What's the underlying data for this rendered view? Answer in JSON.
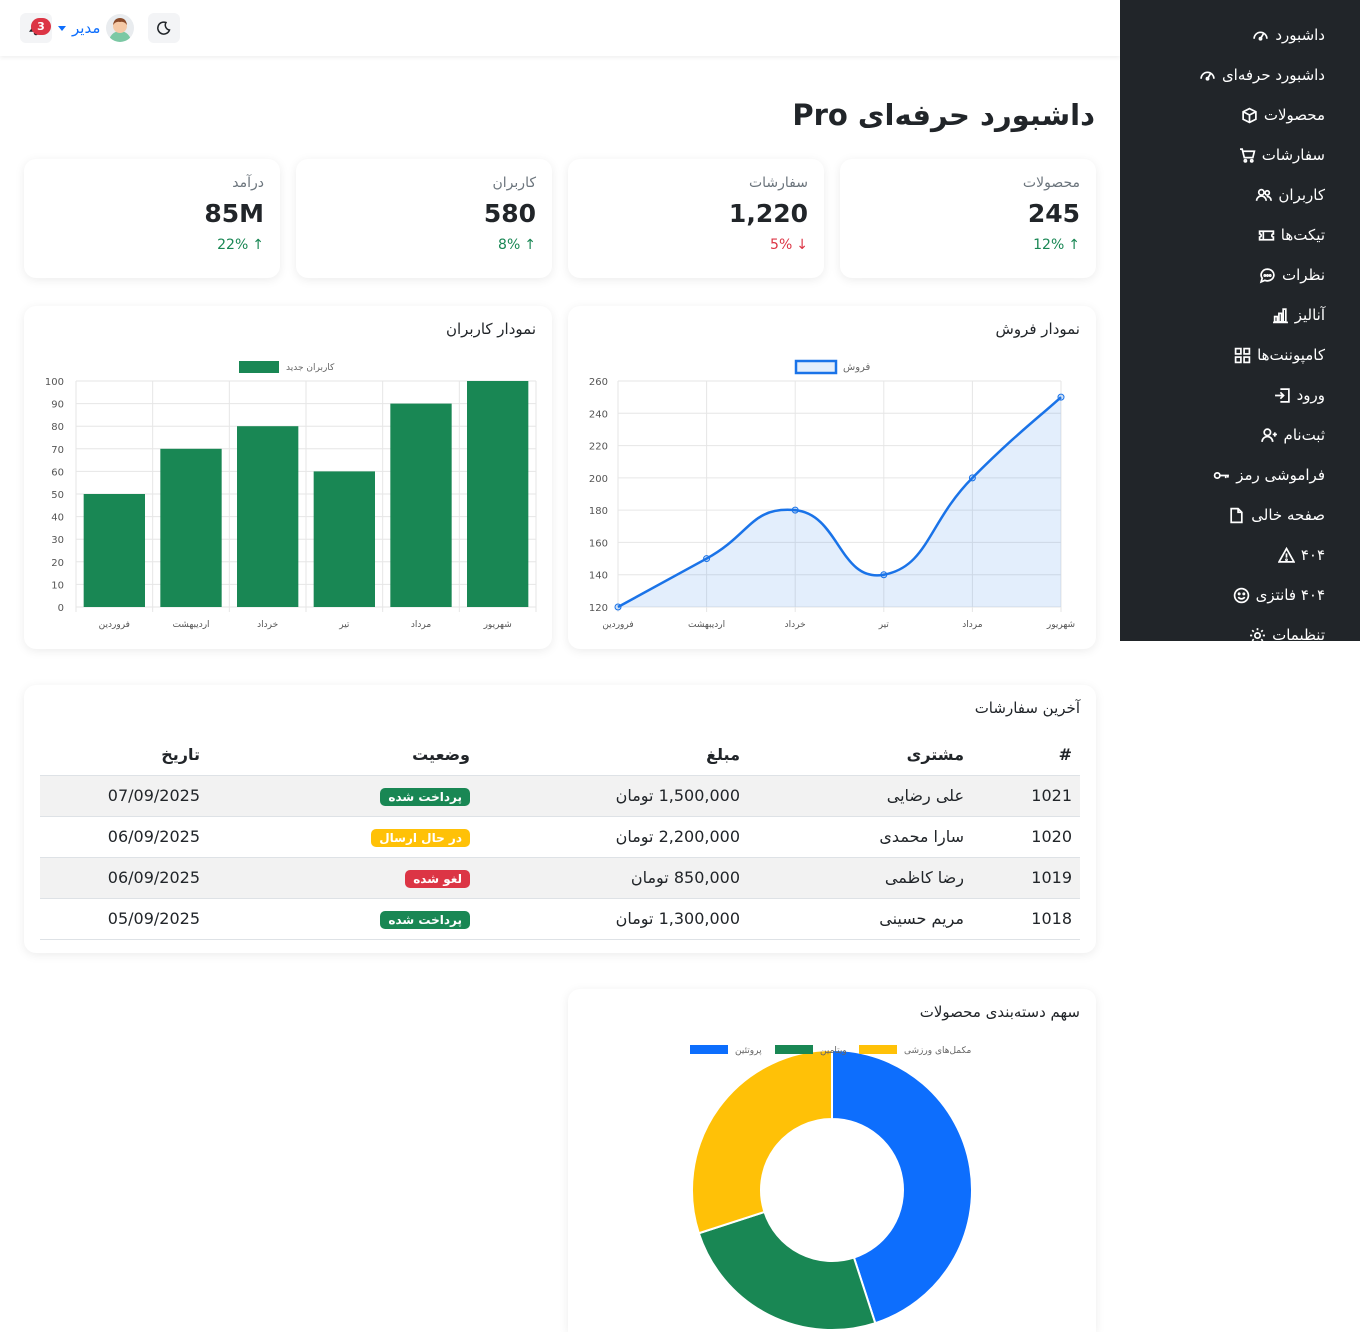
{
  "topbar": {
    "notification_count": "3",
    "user_name": "مدیر"
  },
  "sidebar": {
    "items": [
      {
        "label": "داشبورد",
        "icon": "speedometer-icon"
      },
      {
        "label": "داشبورد حرفه‌ای",
        "icon": "speedometer-icon"
      },
      {
        "label": "محصولات",
        "icon": "box-icon"
      },
      {
        "label": "سفارشات",
        "icon": "cart-icon"
      },
      {
        "label": "کاربران",
        "icon": "users-icon"
      },
      {
        "label": "تیکت‌ها",
        "icon": "ticket-icon"
      },
      {
        "label": "نظرات",
        "icon": "chat-icon"
      },
      {
        "label": "آنالیز",
        "icon": "bar-chart-icon"
      },
      {
        "label": "کامپوننت‌ها",
        "icon": "grid-icon"
      },
      {
        "label": "ورود",
        "icon": "login-icon"
      },
      {
        "label": "ثبت‌نام",
        "icon": "user-plus-icon"
      },
      {
        "label": "فراموشی رمز",
        "icon": "key-icon"
      },
      {
        "label": "صفحه خالی",
        "icon": "file-icon"
      },
      {
        "label": "۴۰۴",
        "icon": "warning-icon"
      },
      {
        "label": "۴۰۴ فانتزی",
        "icon": "smile-icon"
      },
      {
        "label": "تنظیمات",
        "icon": "gear-icon"
      }
    ]
  },
  "page": {
    "title": "داشبورد حرفه‌ای Pro"
  },
  "stats": [
    {
      "label": "محصولات",
      "value": "245",
      "change": "12%",
      "direction": "up"
    },
    {
      "label": "سفارشات",
      "value": "1,220",
      "change": "5%",
      "direction": "down"
    },
    {
      "label": "کاربران",
      "value": "580",
      "change": "8%",
      "direction": "up"
    },
    {
      "label": "درآمد",
      "value": "85M",
      "change": "22%",
      "direction": "up"
    }
  ],
  "chart_data": [
    {
      "type": "line",
      "card_title": "نمودار فروش",
      "categories": [
        "فروردین",
        "اردیبهشت",
        "خرداد",
        "تیر",
        "مرداد",
        "شهریور"
      ],
      "series": [
        {
          "name": "فروش",
          "values": [
            120,
            150,
            180,
            140,
            200,
            250
          ],
          "color": "#1a73e8"
        }
      ],
      "ylim": [
        120,
        260
      ],
      "yticks": [
        "120",
        "140",
        "160",
        "180",
        "200",
        "220",
        "240",
        "260"
      ],
      "grid": true,
      "legend": "top"
    },
    {
      "type": "bar",
      "card_title": "نمودار کاربران",
      "categories": [
        "فروردین",
        "اردیبهشت",
        "خرداد",
        "تیر",
        "مرداد",
        "شهریور"
      ],
      "series": [
        {
          "name": "کاربران جدید",
          "values": [
            50,
            70,
            80,
            60,
            90,
            100
          ],
          "color": "#198754"
        }
      ],
      "ylim": [
        0,
        100
      ],
      "yticks": [
        "0",
        "10",
        "20",
        "30",
        "40",
        "50",
        "60",
        "70",
        "80",
        "90",
        "100"
      ],
      "grid": true,
      "legend": "top"
    },
    {
      "type": "pie",
      "card_title": "سهم دسته‌بندی محصولات",
      "categories": [
        "پروتئین",
        "ویتامین",
        "مکمل‌های ورزشی"
      ],
      "values": [
        45,
        25,
        30
      ],
      "colors": [
        "#0d6efd",
        "#198754",
        "#ffc107"
      ],
      "legend": "top"
    }
  ],
  "orders": {
    "title": "آخرین سفارشات",
    "headers": [
      "#",
      "مشتری",
      "مبلغ",
      "وضعیت",
      "تاریخ"
    ],
    "rows": [
      {
        "id": "1021",
        "customer": "علی رضایی",
        "amount": "1,500,000 تومان",
        "status": "پرداخت شده",
        "status_color": "#198754",
        "status_text_color": "#ffffff",
        "date": "07/09/2025"
      },
      {
        "id": "1020",
        "customer": "سارا محمدی",
        "amount": "2,200,000 تومان",
        "status": "در حال ارسال",
        "status_color": "#ffc107",
        "status_text_color": "#ffffff",
        "date": "06/09/2025"
      },
      {
        "id": "1019",
        "customer": "رضا کاظمی",
        "amount": "850,000 تومان",
        "status": "لغو شده",
        "status_color": "#dc3545",
        "status_text_color": "#ffffff",
        "date": "06/09/2025"
      },
      {
        "id": "1018",
        "customer": "مریم حسینی",
        "amount": "1,300,000 تومان",
        "status": "پرداخت شده",
        "status_color": "#198754",
        "status_text_color": "#ffffff",
        "date": "05/09/2025"
      }
    ]
  }
}
